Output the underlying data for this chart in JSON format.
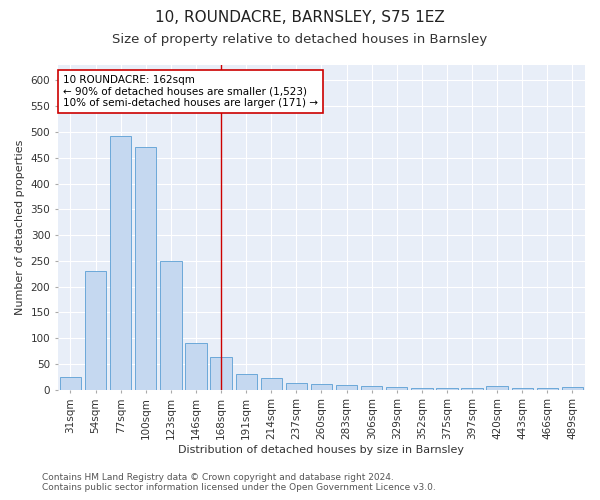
{
  "title1": "10, ROUNDACRE, BARNSLEY, S75 1EZ",
  "title2": "Size of property relative to detached houses in Barnsley",
  "xlabel": "Distribution of detached houses by size in Barnsley",
  "ylabel": "Number of detached properties",
  "categories": [
    "31sqm",
    "54sqm",
    "77sqm",
    "100sqm",
    "123sqm",
    "146sqm",
    "168sqm",
    "191sqm",
    "214sqm",
    "237sqm",
    "260sqm",
    "283sqm",
    "306sqm",
    "329sqm",
    "352sqm",
    "375sqm",
    "397sqm",
    "420sqm",
    "443sqm",
    "466sqm",
    "489sqm"
  ],
  "values": [
    25,
    231,
    492,
    471,
    249,
    90,
    63,
    30,
    22,
    12,
    11,
    10,
    7,
    5,
    4,
    4,
    3,
    7,
    3,
    3,
    6
  ],
  "bar_color": "#c5d8f0",
  "bar_edge_color": "#5a9fd4",
  "vline_x": 6.0,
  "annotation_text_line1": "10 ROUNDACRE: 162sqm",
  "annotation_text_line2": "← 90% of detached houses are smaller (1,523)",
  "annotation_text_line3": "10% of semi-detached houses are larger (171) →",
  "vline_color": "#cc0000",
  "annotation_box_facecolor": "#ffffff",
  "annotation_box_edgecolor": "#cc0000",
  "ylim": [
    0,
    630
  ],
  "yticks": [
    0,
    50,
    100,
    150,
    200,
    250,
    300,
    350,
    400,
    450,
    500,
    550,
    600
  ],
  "footer_line1": "Contains HM Land Registry data © Crown copyright and database right 2024.",
  "footer_line2": "Contains public sector information licensed under the Open Government Licence v3.0.",
  "fig_facecolor": "#ffffff",
  "ax_facecolor": "#e8eef8",
  "grid_color": "#ffffff",
  "title1_fontsize": 11,
  "title2_fontsize": 9.5,
  "axis_label_fontsize": 8,
  "tick_fontsize": 7.5,
  "annotation_fontsize": 7.5,
  "footer_fontsize": 6.5,
  "ylabel_color": "#333333",
  "tick_color": "#333333"
}
